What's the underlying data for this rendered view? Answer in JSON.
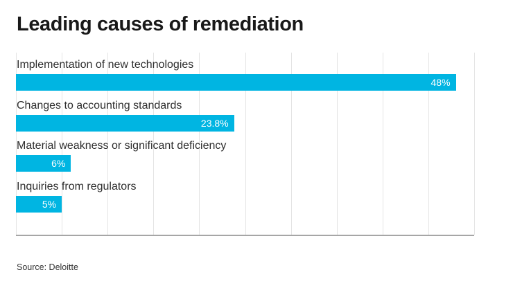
{
  "header": {
    "title": "Leading causes of remediation"
  },
  "footer": {
    "source": "Source: Deloitte"
  },
  "colors": {
    "bar": "#00b5e2",
    "gridline": "#e4e4e4",
    "axis": "#a6a6a6",
    "value_text": "#ffffff",
    "title_text": "#191919"
  },
  "chart_data": {
    "type": "bar",
    "orientation": "horizontal",
    "title": "Leading causes of remediation",
    "categories": [
      "Implementation of new technologies",
      "Changes to accounting standards",
      "Material weakness or significant deficiency",
      "Inquiries from regulators"
    ],
    "values": [
      48,
      23.8,
      6,
      5
    ],
    "value_labels": [
      "48%",
      "23.8%",
      "6%",
      "5%"
    ],
    "xlim": [
      0,
      50
    ],
    "gridline_step": 5,
    "grid": true,
    "legend": "none",
    "value_label_position": "inside-end",
    "source": "Source: Deloitte"
  }
}
